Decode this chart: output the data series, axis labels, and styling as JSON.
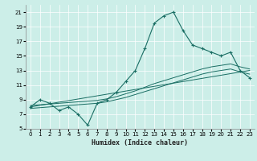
{
  "xlabel": "Humidex (Indice chaleur)",
  "bg_color": "#cceee8",
  "line_color": "#1a6e64",
  "xlim": [
    -0.5,
    23.5
  ],
  "ylim": [
    5,
    22
  ],
  "xticks": [
    0,
    1,
    2,
    3,
    4,
    5,
    6,
    7,
    8,
    9,
    10,
    11,
    12,
    13,
    14,
    15,
    16,
    17,
    18,
    19,
    20,
    21,
    22,
    23
  ],
  "yticks": [
    5,
    7,
    9,
    11,
    13,
    15,
    17,
    19,
    21
  ],
  "line1_x": [
    0,
    1,
    2,
    3,
    4,
    5,
    6,
    7,
    8,
    9,
    10,
    11,
    12,
    13,
    14,
    15,
    16,
    17,
    18,
    19,
    20,
    21,
    22,
    23
  ],
  "line1_y": [
    8.0,
    9.0,
    8.5,
    7.5,
    8.0,
    7.0,
    5.5,
    8.5,
    9.0,
    10.0,
    11.5,
    13.0,
    16.0,
    19.5,
    20.5,
    21.0,
    18.5,
    16.5,
    16.0,
    15.5,
    15.0,
    15.5,
    13.0,
    12.0
  ],
  "line2_x": [
    0,
    1,
    2,
    3,
    4,
    5,
    6,
    7,
    8,
    9,
    10,
    11,
    12,
    13,
    14,
    15,
    16,
    17,
    18,
    19,
    20,
    21,
    22,
    23
  ],
  "line2_y": [
    8.2,
    8.3,
    8.4,
    8.5,
    8.6,
    8.7,
    8.8,
    8.9,
    9.1,
    9.4,
    9.8,
    10.2,
    10.7,
    11.2,
    11.6,
    12.0,
    12.4,
    12.8,
    13.2,
    13.5,
    13.7,
    13.9,
    13.5,
    13.2
  ],
  "line3_x": [
    0,
    1,
    2,
    3,
    4,
    5,
    6,
    7,
    8,
    9,
    10,
    11,
    12,
    13,
    14,
    15,
    16,
    17,
    18,
    19,
    20,
    21,
    22,
    23
  ],
  "line3_y": [
    7.8,
    7.9,
    8.0,
    8.1,
    8.2,
    8.3,
    8.4,
    8.5,
    8.7,
    9.0,
    9.3,
    9.7,
    10.1,
    10.5,
    10.9,
    11.3,
    11.7,
    12.1,
    12.5,
    12.8,
    13.0,
    13.2,
    12.8,
    12.5
  ],
  "line4_x": [
    0,
    23
  ],
  "line4_y": [
    8.0,
    13.0
  ],
  "xlabel_fontsize": 6,
  "tick_fontsize": 5
}
